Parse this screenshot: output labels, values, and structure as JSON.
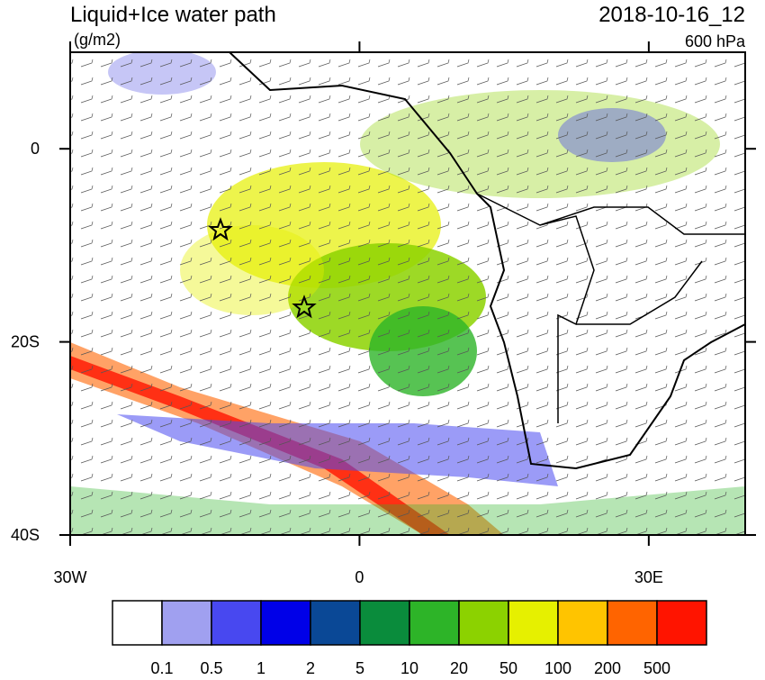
{
  "title": "Liquid+Ice water path",
  "units": "(g/m2)",
  "time": "2018-10-16_12",
  "level": "600 hPa",
  "map": {
    "lonlim": [
      -30,
      40
    ],
    "latlim": [
      -40,
      10
    ],
    "lon_ticks": [
      {
        "value": -30,
        "label": "30W"
      },
      {
        "value": 0,
        "label": "0"
      },
      {
        "value": 30,
        "label": "30E"
      }
    ],
    "lat_ticks": [
      {
        "value": 0,
        "label": "0"
      },
      {
        "value": -20,
        "label": "20S"
      },
      {
        "value": -40,
        "label": "40S"
      }
    ]
  },
  "colorbar": {
    "colors": [
      "#ffffff",
      "#a0a0f0",
      "#4848f0",
      "#0000e8",
      "#0a4896",
      "#0a8c3c",
      "#2db428",
      "#8cd200",
      "#e6f000",
      "#ffc400",
      "#ff6400",
      "#ff1400"
    ],
    "levels": [
      0.1,
      0.5,
      1,
      2,
      5,
      10,
      20,
      50,
      100,
      200,
      500
    ]
  }
}
